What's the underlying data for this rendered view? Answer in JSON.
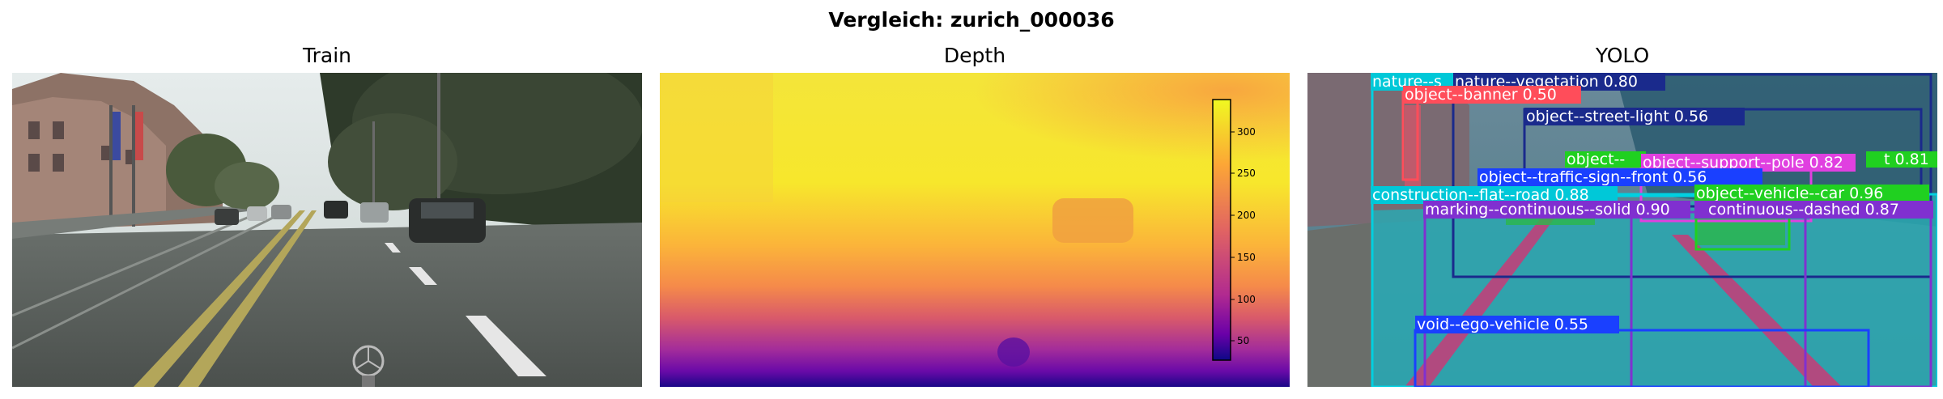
{
  "figure": {
    "title": "Vergleich: zurich_000036"
  },
  "panels": [
    {
      "title": "Train",
      "image": "street-scene-photo"
    },
    {
      "title": "Depth",
      "image": "depth-map-plasma",
      "colormap": "plasma",
      "colorbar_ticks": [
        "300",
        "250",
        "200",
        "150",
        "100",
        "50"
      ]
    },
    {
      "title": "YOLO",
      "image": "segmentation-overlay"
    }
  ],
  "detections": [
    {
      "label": "nature--s",
      "color": "#00c8d8"
    },
    {
      "label": "nature--vegetation 0.80",
      "color": "#1a2a8c"
    },
    {
      "label": "object--banner 0.50",
      "color": "#ff4d5a"
    },
    {
      "label": "object--street-light 0.56",
      "color": "#1a2a8c"
    },
    {
      "label": "object--",
      "color": "#20d020"
    },
    {
      "label": "object--support--pole 0.82",
      "color": "#e040e0"
    },
    {
      "label": "t 0.81",
      "color": "#20d020"
    },
    {
      "label": "object--traffic-sign--front 0.56",
      "color": "#1a40ff"
    },
    {
      "label": "construction--flat--road 0.88",
      "color": "#00c8d8"
    },
    {
      "label": "object--vehicle--car 0.96",
      "color": "#20d020"
    },
    {
      "label": "marking--continuous--solid 0.90",
      "color": "#8030d0"
    },
    {
      "label": "continuous--dashed 0.87",
      "color": "#8030d0"
    },
    {
      "label": "void--ego-vehicle 0.55",
      "color": "#1a40ff"
    }
  ]
}
